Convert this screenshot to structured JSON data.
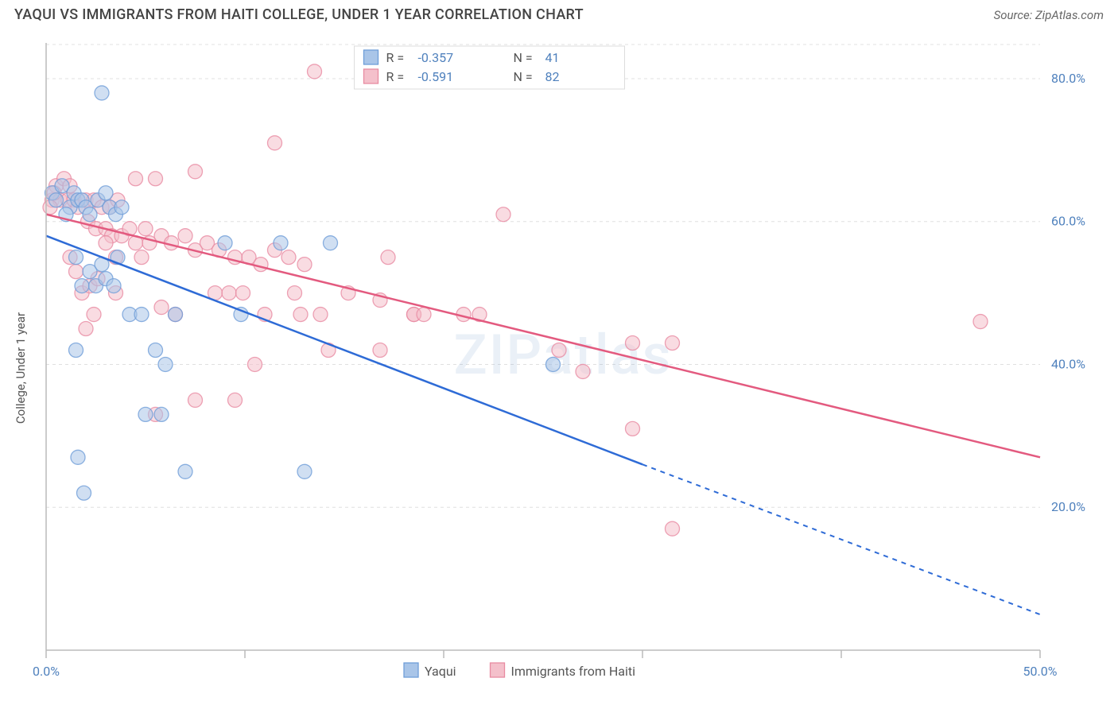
{
  "header": {
    "title": "YAQUI VS IMMIGRANTS FROM HAITI COLLEGE, UNDER 1 YEAR CORRELATION CHART",
    "source": "Source: ZipAtlas.com"
  },
  "chart": {
    "type": "scatter",
    "watermark": "ZIPatlas",
    "background_color": "#ffffff",
    "grid_color": "#e0e0e0",
    "axis_color": "#bbbbbb",
    "ylabel": "College, Under 1 year",
    "xlim": [
      0,
      50
    ],
    "ylim": [
      0,
      85
    ],
    "xticks": [
      0,
      10,
      20,
      30,
      40,
      50
    ],
    "xtick_labels_shown": {
      "0": "0.0%",
      "50": "50.0%"
    },
    "yticks": [
      20,
      40,
      60,
      80
    ],
    "ytick_labels": [
      "20.0%",
      "40.0%",
      "60.0%",
      "80.0%"
    ],
    "series": [
      {
        "name": "Yaqui",
        "color_fill": "#a9c5e8",
        "color_stroke": "#6f9ed8",
        "marker_radius": 9,
        "marker_opacity": 0.55,
        "R": "-0.357",
        "N": "41",
        "regression": {
          "x1": 0,
          "y1": 58,
          "x2": 30,
          "y2": 26,
          "color": "#2e6bd6",
          "width": 2.5,
          "extrapolate_to_x": 50,
          "extrapolate_y": 5
        },
        "points": [
          [
            0.3,
            64
          ],
          [
            0.5,
            63
          ],
          [
            0.8,
            65
          ],
          [
            1.2,
            62
          ],
          [
            1.4,
            64
          ],
          [
            1.6,
            63
          ],
          [
            1.0,
            61
          ],
          [
            1.8,
            63
          ],
          [
            2.0,
            62
          ],
          [
            2.2,
            61
          ],
          [
            2.6,
            63
          ],
          [
            3.0,
            64
          ],
          [
            3.2,
            62
          ],
          [
            3.5,
            61
          ],
          [
            2.8,
            78
          ],
          [
            1.5,
            55
          ],
          [
            1.8,
            51
          ],
          [
            2.2,
            53
          ],
          [
            2.5,
            51
          ],
          [
            2.8,
            54
          ],
          [
            3.0,
            52
          ],
          [
            3.4,
            51
          ],
          [
            3.6,
            55
          ],
          [
            4.2,
            47
          ],
          [
            4.8,
            47
          ],
          [
            5.5,
            42
          ],
          [
            6.0,
            40
          ],
          [
            6.5,
            47
          ],
          [
            9.8,
            47
          ],
          [
            1.6,
            27
          ],
          [
            1.9,
            22
          ],
          [
            5.0,
            33
          ],
          [
            5.8,
            33
          ],
          [
            1.5,
            42
          ],
          [
            9.0,
            57
          ],
          [
            11.8,
            57
          ],
          [
            13.0,
            25
          ],
          [
            14.3,
            57
          ],
          [
            25.5,
            40
          ],
          [
            7.0,
            25
          ],
          [
            3.8,
            62
          ]
        ]
      },
      {
        "name": "Immigrants from Haiti",
        "color_fill": "#f4c0cb",
        "color_stroke": "#e88ba2",
        "marker_radius": 9,
        "marker_opacity": 0.55,
        "R": "-0.591",
        "N": "82",
        "regression": {
          "x1": 0,
          "y1": 61,
          "x2": 50,
          "y2": 27,
          "color": "#e35a7f",
          "width": 2.5
        },
        "points": [
          [
            0.3,
            63
          ],
          [
            0.5,
            65
          ],
          [
            0.7,
            63
          ],
          [
            0.9,
            66
          ],
          [
            1.2,
            65
          ],
          [
            1.1,
            63
          ],
          [
            1.4,
            63
          ],
          [
            1.6,
            62
          ],
          [
            2.0,
            63
          ],
          [
            2.4,
            63
          ],
          [
            2.8,
            62
          ],
          [
            3.2,
            62
          ],
          [
            3.6,
            63
          ],
          [
            4.5,
            66
          ],
          [
            5.5,
            66
          ],
          [
            2.1,
            60
          ],
          [
            2.5,
            59
          ],
          [
            3.0,
            59
          ],
          [
            3.3,
            58
          ],
          [
            3.8,
            58
          ],
          [
            4.2,
            59
          ],
          [
            4.5,
            57
          ],
          [
            5.0,
            59
          ],
          [
            5.2,
            57
          ],
          [
            5.8,
            58
          ],
          [
            6.3,
            57
          ],
          [
            7.0,
            58
          ],
          [
            7.5,
            56
          ],
          [
            8.1,
            57
          ],
          [
            8.7,
            56
          ],
          [
            9.5,
            55
          ],
          [
            10.2,
            55
          ],
          [
            10.8,
            54
          ],
          [
            11.5,
            56
          ],
          [
            12.2,
            55
          ],
          [
            13.0,
            54
          ],
          [
            13.5,
            81
          ],
          [
            11.5,
            71
          ],
          [
            7.5,
            67
          ],
          [
            1.2,
            55
          ],
          [
            1.5,
            53
          ],
          [
            1.8,
            50
          ],
          [
            2.2,
            51
          ],
          [
            2.6,
            52
          ],
          [
            3.0,
            57
          ],
          [
            3.5,
            55
          ],
          [
            2.0,
            45
          ],
          [
            2.4,
            47
          ],
          [
            5.8,
            48
          ],
          [
            6.5,
            47
          ],
          [
            4.8,
            55
          ],
          [
            8.5,
            50
          ],
          [
            9.2,
            50
          ],
          [
            9.9,
            50
          ],
          [
            11.0,
            47
          ],
          [
            12.5,
            50
          ],
          [
            13.8,
            47
          ],
          [
            15.2,
            50
          ],
          [
            16.8,
            49
          ],
          [
            18.5,
            47
          ],
          [
            21.8,
            47
          ],
          [
            23.0,
            61
          ],
          [
            17.2,
            55
          ],
          [
            7.5,
            35
          ],
          [
            5.5,
            33
          ],
          [
            9.5,
            35
          ],
          [
            10.5,
            40
          ],
          [
            14.2,
            42
          ],
          [
            16.8,
            42
          ],
          [
            18.5,
            47
          ],
          [
            21.0,
            47
          ],
          [
            25.8,
            42
          ],
          [
            27.0,
            39
          ],
          [
            29.5,
            43
          ],
          [
            31.5,
            43
          ],
          [
            29.5,
            31
          ],
          [
            31.5,
            17
          ],
          [
            19.0,
            47
          ],
          [
            47.0,
            46
          ],
          [
            0.2,
            62
          ],
          [
            0.4,
            64
          ],
          [
            3.5,
            50
          ],
          [
            12.8,
            47
          ]
        ]
      }
    ],
    "bottom_legend": [
      {
        "label": "Yaqui",
        "fill": "#a9c5e8",
        "stroke": "#6f9ed8"
      },
      {
        "label": "Immigrants from Haiti",
        "fill": "#f4c0cb",
        "stroke": "#e88ba2"
      }
    ]
  }
}
